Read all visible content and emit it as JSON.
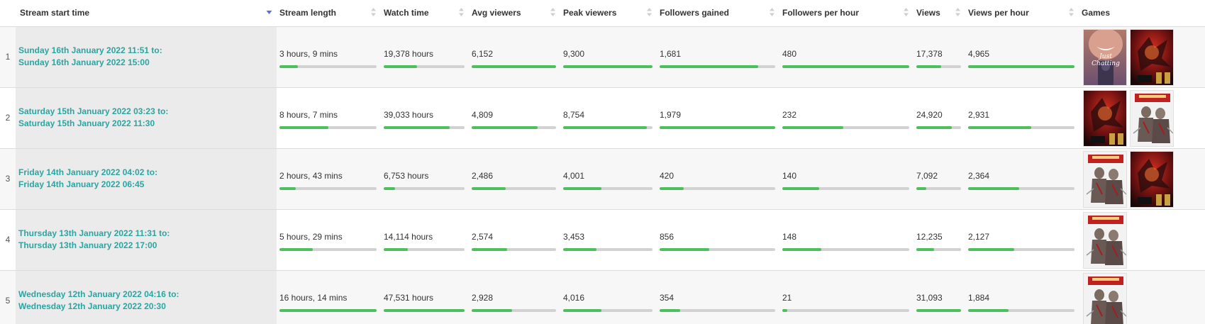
{
  "table": {
    "headers": [
      "Stream start time",
      "Stream length",
      "Watch time",
      "Avg viewers",
      "Peak viewers",
      "Followers gained",
      "Followers per hour",
      "Views",
      "Views per hour",
      "Games"
    ],
    "active_sort": "Stream start time",
    "game_names": {
      "just-chatting": "Just Chatting",
      "league-of-legends": "League of Legends"
    },
    "rows": [
      {
        "index": "1",
        "start_line1": "Sunday 16th January 2022 11:51 to:",
        "start_line2": "Sunday 16th January 2022 15:00",
        "length": "3 hours, 9 mins",
        "watch": "19,378 hours",
        "avg": "6,152",
        "peak": "9,300",
        "followers": "1,681",
        "fph": "480",
        "views": "17,378",
        "vph": "4,965",
        "bars": {
          "length": 0.19,
          "watch": 0.41,
          "avg": 1.0,
          "peak": 1.0,
          "followers": 0.85,
          "fph": 1.0,
          "views": 0.56,
          "vph": 1.0
        },
        "games": [
          "just-chatting",
          "league-of-legends"
        ]
      },
      {
        "index": "2",
        "start_line1": "Saturday 15th January 2022 03:23 to:",
        "start_line2": "Saturday 15th January 2022 11:30",
        "length": "8 hours, 7 mins",
        "watch": "39,033 hours",
        "avg": "4,809",
        "peak": "8,754",
        "followers": "1,979",
        "fph": "232",
        "views": "24,920",
        "vph": "2,931",
        "bars": {
          "length": 0.5,
          "watch": 0.82,
          "avg": 0.78,
          "peak": 0.94,
          "followers": 1.0,
          "fph": 0.48,
          "views": 0.8,
          "vph": 0.59
        },
        "games": [
          "league-of-legends",
          "warrior-game"
        ]
      },
      {
        "index": "3",
        "start_line1": "Friday 14th January 2022 04:02 to:",
        "start_line2": "Friday 14th January 2022 06:45",
        "length": "2 hours, 43 mins",
        "watch": "6,753 hours",
        "avg": "2,486",
        "peak": "4,001",
        "followers": "420",
        "fph": "140",
        "views": "7,092",
        "vph": "2,364",
        "bars": {
          "length": 0.17,
          "watch": 0.14,
          "avg": 0.4,
          "peak": 0.43,
          "followers": 0.21,
          "fph": 0.29,
          "views": 0.23,
          "vph": 0.48
        },
        "games": [
          "warrior-game",
          "league-of-legends"
        ]
      },
      {
        "index": "4",
        "start_line1": "Thursday 13th January 2022 11:31 to:",
        "start_line2": "Thursday 13th January 2022 17:00",
        "length": "5 hours, 29 mins",
        "watch": "14,114 hours",
        "avg": "2,574",
        "peak": "3,453",
        "followers": "856",
        "fph": "148",
        "views": "12,235",
        "vph": "2,127",
        "bars": {
          "length": 0.34,
          "watch": 0.3,
          "avg": 0.42,
          "peak": 0.37,
          "followers": 0.43,
          "fph": 0.31,
          "views": 0.39,
          "vph": 0.43
        },
        "games": [
          "warrior-game"
        ]
      },
      {
        "index": "5",
        "start_line1": "Wednesday 12th January 2022 04:16 to:",
        "start_line2": "Wednesday 12th January 2022 20:30",
        "length": "16 hours, 14 mins",
        "watch": "47,531 hours",
        "avg": "2,928",
        "peak": "4,016",
        "followers": "354",
        "fph": "21",
        "views": "31,093",
        "vph": "1,884",
        "bars": {
          "length": 1.0,
          "watch": 1.0,
          "avg": 0.48,
          "peak": 0.43,
          "followers": 0.18,
          "fph": 0.04,
          "views": 1.0,
          "vph": 0.38
        },
        "games": [
          "warrior-game"
        ]
      }
    ]
  },
  "colors": {
    "link_teal": "#2aa5a2",
    "bar_fill": "#4cc05a",
    "bar_track": "#d2d2d2",
    "sort_active": "#5b6fd6",
    "sort_inactive": "#cfcfcf"
  },
  "icons": {
    "sort_active": "sort-desc-icon",
    "sort_inactive": "sort-icon"
  }
}
